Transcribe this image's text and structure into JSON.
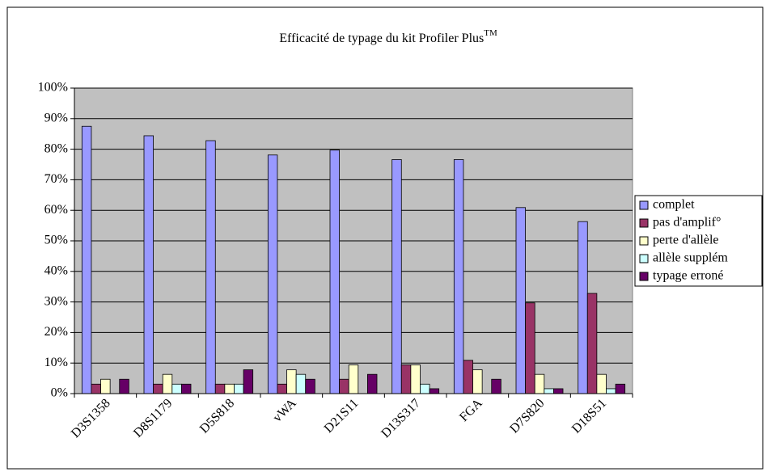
{
  "chart_data": {
    "type": "bar",
    "title": "Efficacité de typage du kit Profiler Plus",
    "title_superscript": "TM",
    "categories": [
      "D3S1358",
      "D8S1179",
      "D5S818",
      "vWA",
      "D21S11",
      "D13S317",
      "FGA",
      "D7S820",
      "D18S51"
    ],
    "series": [
      {
        "name": "complet",
        "color": "#9999ff",
        "values": [
          87.5,
          84.4,
          82.8,
          78.1,
          79.7,
          76.6,
          76.6,
          60.9,
          56.3
        ]
      },
      {
        "name": "pas d'amplif°",
        "color": "#993366",
        "values": [
          3.1,
          3.1,
          3.1,
          3.1,
          4.7,
          9.4,
          10.9,
          29.7,
          32.8
        ]
      },
      {
        "name": "perte d'allèle",
        "color": "#ffffcc",
        "values": [
          4.7,
          6.3,
          3.1,
          7.8,
          9.4,
          9.4,
          7.8,
          6.3,
          6.3
        ]
      },
      {
        "name": "allèle supplém",
        "color": "#ccffff",
        "values": [
          0,
          3.1,
          3.1,
          6.3,
          0,
          3.1,
          0,
          1.6,
          1.6
        ]
      },
      {
        "name": "typage erroné",
        "color": "#660066",
        "values": [
          4.7,
          3.1,
          7.8,
          4.7,
          6.3,
          1.6,
          4.7,
          1.6,
          3.1
        ]
      }
    ],
    "ylim": [
      0,
      100
    ],
    "yticks": [
      {
        "value": 0,
        "label": "0%"
      },
      {
        "value": 10,
        "label": "10%"
      },
      {
        "value": 20,
        "label": "20%"
      },
      {
        "value": 30,
        "label": "30%"
      },
      {
        "value": 40,
        "label": "40%"
      },
      {
        "value": 50,
        "label": "50%"
      },
      {
        "value": 60,
        "label": "60%"
      },
      {
        "value": 70,
        "label": "70%"
      },
      {
        "value": 80,
        "label": "80%"
      },
      {
        "value": 90,
        "label": "90%"
      },
      {
        "value": 100,
        "label": "100%"
      }
    ],
    "grid": true,
    "plot_background": "#c0c0c0",
    "legend": "right"
  }
}
